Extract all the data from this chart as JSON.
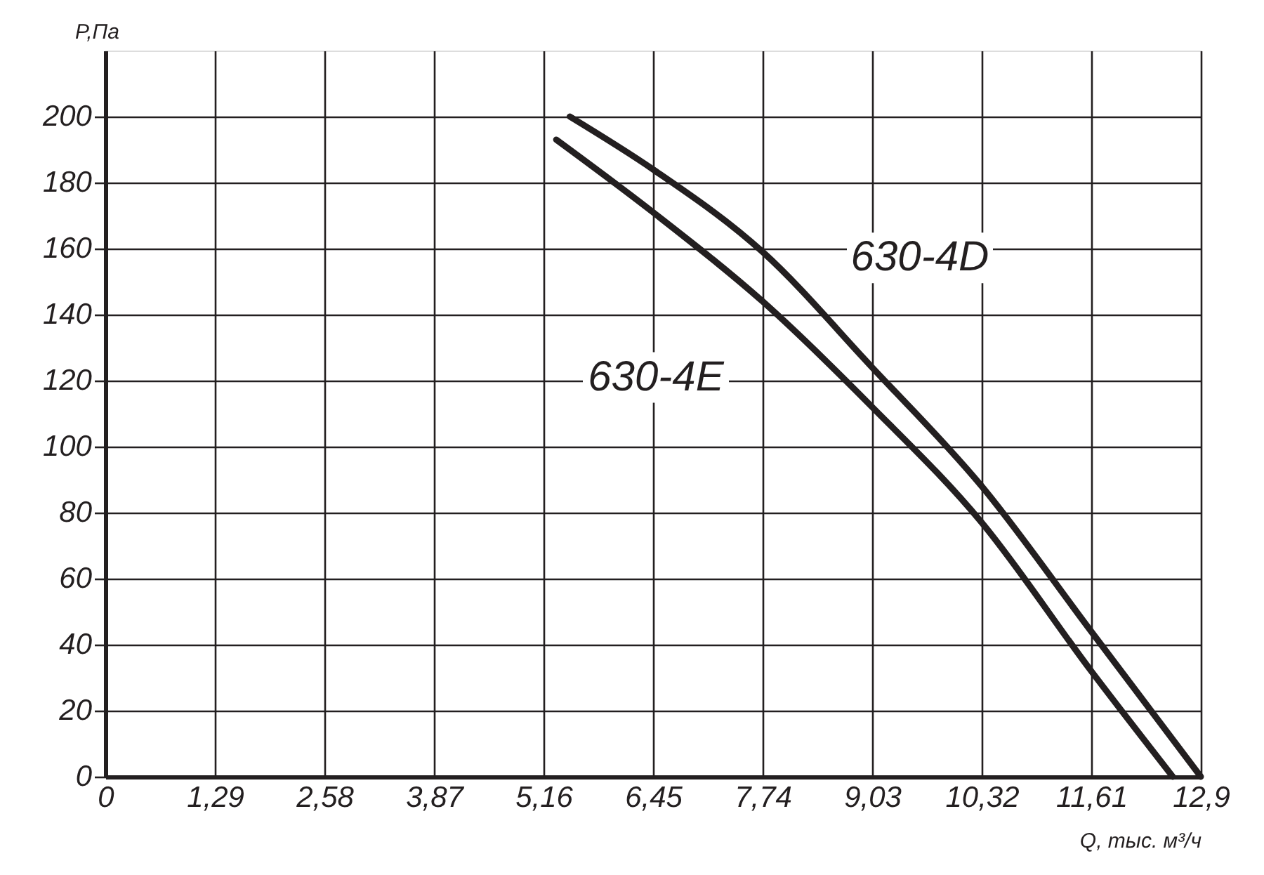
{
  "chart_data": {
    "type": "line",
    "xlabel": "Q, тыс. м³/ч",
    "ylabel": "P,Па",
    "series": [
      {
        "name": "630-4D",
        "color": "#231f20",
        "x": [
          5.47,
          6.45,
          7.74,
          9.03,
          10.32,
          11.61,
          12.9
        ],
        "values": [
          200,
          184,
          159,
          124,
          88,
          44,
          0
        ]
      },
      {
        "name": "630-4E",
        "color": "#231f20",
        "x": [
          5.31,
          6.45,
          7.74,
          9.03,
          10.32,
          11.61,
          12.57
        ],
        "values": [
          193,
          171,
          144,
          112,
          77,
          32,
          0
        ]
      }
    ],
    "xlim": [
      0,
      12.9
    ],
    "ylim": [
      0,
      220
    ],
    "xticks": [
      0,
      {
        "value": 1.29,
        "label": "1,29"
      },
      {
        "value": 2.58,
        "label": "2,58"
      },
      {
        "value": 3.87,
        "label": "3,87"
      },
      {
        "value": 5.16,
        "label": "5,16"
      },
      {
        "value": 6.45,
        "label": "6,45"
      },
      {
        "value": 7.74,
        "label": "7,74"
      },
      {
        "value": 9.03,
        "label": "9,03"
      },
      {
        "value": 10.32,
        "label": "10,32"
      },
      {
        "value": 11.61,
        "label": "11,61"
      },
      {
        "value": 12.9,
        "label": "12,9"
      }
    ],
    "yticks": [
      0,
      20,
      40,
      60,
      80,
      100,
      120,
      140,
      160,
      180,
      200
    ],
    "grid": true,
    "legend": false,
    "marker": "none",
    "line_style": "solid"
  }
}
